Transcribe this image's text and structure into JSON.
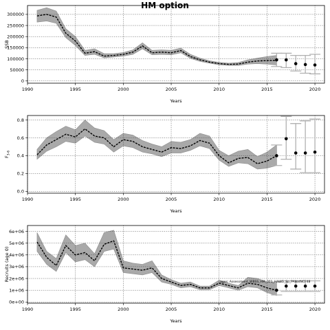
{
  "title": "HM option",
  "chart_data": [
    {
      "type": "line",
      "xlabel": "Years",
      "ylabel": "SSB",
      "xlim": [
        1990,
        2021
      ],
      "ylim": [
        -10000,
        340000
      ],
      "x_ticks": [
        1990,
        1995,
        2000,
        2005,
        2010,
        2015,
        2020
      ],
      "y_ticks": [
        0,
        50000,
        100000,
        150000,
        200000,
        250000,
        300000
      ],
      "grid": true,
      "x": [
        1991,
        1992,
        1993,
        1994,
        1995,
        1996,
        1997,
        1998,
        1999,
        2000,
        2001,
        2002,
        2003,
        2004,
        2005,
        2006,
        2007,
        2008,
        2009,
        2010,
        2011,
        2012,
        2013,
        2014,
        2015,
        2016
      ],
      "estimate": [
        293000,
        300000,
        288000,
        215000,
        180000,
        125000,
        132000,
        112000,
        115000,
        120000,
        130000,
        158000,
        127000,
        130000,
        127000,
        137000,
        110000,
        95000,
        85000,
        78000,
        75000,
        76000,
        85000,
        90000,
        92000,
        93000
      ],
      "lower": [
        265000,
        270000,
        260000,
        195000,
        160000,
        115000,
        120000,
        104000,
        108000,
        112000,
        120000,
        145000,
        118000,
        120000,
        118000,
        127000,
        102000,
        88000,
        80000,
        73000,
        70000,
        70000,
        76000,
        78000,
        76000,
        72000
      ],
      "upper": [
        318000,
        330000,
        315000,
        235000,
        200000,
        138000,
        145000,
        123000,
        123000,
        128000,
        140000,
        172000,
        138000,
        140000,
        138000,
        148000,
        120000,
        103000,
        91000,
        84000,
        80000,
        83000,
        95000,
        103000,
        110000,
        115000
      ],
      "forecast": {
        "x": [
          2016,
          2017,
          2018,
          2019,
          2020
        ],
        "values": [
          95000,
          95000,
          78000,
          74000,
          72000
        ],
        "lower": [
          65000,
          60000,
          45000,
          35000,
          32000
        ],
        "upper": [
          125000,
          125000,
          115000,
          115000,
          120000
        ]
      }
    },
    {
      "type": "line",
      "xlabel": "Years",
      "ylabel": "F",
      "ylabel_subscript": "3-6",
      "xlim": [
        1990,
        2021
      ],
      "ylim": [
        -0.02,
        0.85
      ],
      "x_ticks": [
        1990,
        1995,
        2000,
        2005,
        2010,
        2015,
        2020
      ],
      "y_ticks": [
        0.0,
        0.2,
        0.4,
        0.6,
        0.8
      ],
      "y_tick_labels": [
        "0.0",
        "0.2",
        "0.4",
        "0.6",
        "0.8"
      ],
      "grid": true,
      "x": [
        1991,
        1992,
        1993,
        1994,
        1995,
        1996,
        1997,
        1998,
        1999,
        2000,
        2001,
        2002,
        2003,
        2004,
        2005,
        2006,
        2007,
        2008,
        2009,
        2010,
        2011,
        2012,
        2013,
        2014,
        2015,
        2016
      ],
      "estimate": [
        0.41,
        0.52,
        0.58,
        0.64,
        0.61,
        0.7,
        0.62,
        0.6,
        0.5,
        0.58,
        0.56,
        0.5,
        0.47,
        0.44,
        0.49,
        0.48,
        0.51,
        0.57,
        0.54,
        0.4,
        0.32,
        0.37,
        0.38,
        0.31,
        0.34,
        0.4
      ],
      "lower": [
        0.36,
        0.45,
        0.5,
        0.56,
        0.54,
        0.62,
        0.55,
        0.53,
        0.44,
        0.51,
        0.49,
        0.44,
        0.42,
        0.39,
        0.43,
        0.43,
        0.46,
        0.51,
        0.48,
        0.35,
        0.28,
        0.32,
        0.31,
        0.25,
        0.26,
        0.29
      ],
      "upper": [
        0.47,
        0.6,
        0.67,
        0.73,
        0.69,
        0.8,
        0.71,
        0.68,
        0.58,
        0.65,
        0.63,
        0.57,
        0.53,
        0.5,
        0.56,
        0.55,
        0.58,
        0.65,
        0.62,
        0.46,
        0.4,
        0.45,
        0.47,
        0.39,
        0.44,
        0.52
      ],
      "forecast": {
        "x": [
          2016,
          2017,
          2018,
          2019,
          2020
        ],
        "values": [
          0.4,
          0.59,
          0.43,
          0.43,
          0.44
        ],
        "lower": [
          0.29,
          0.36,
          0.25,
          0.21,
          0.21
        ],
        "upper": [
          0.52,
          0.84,
          0.76,
          0.79,
          0.81
        ]
      }
    },
    {
      "type": "line",
      "xlabel": "Years",
      "ylabel": "Recruits (age 0)",
      "xlim": [
        1990,
        2021
      ],
      "ylim": [
        -100000,
        6500000
      ],
      "x_ticks": [
        1990,
        1995,
        2000,
        2005,
        2010,
        2015,
        2020
      ],
      "y_ticks": [
        0,
        1000000,
        2000000,
        3000000,
        4000000,
        5000000,
        6000000
      ],
      "y_tick_labels": [
        "0e+00",
        "1e+06",
        "2e+06",
        "3e+06",
        "4e+06",
        "5e+06",
        "6e+06"
      ],
      "grid": true,
      "annotation": "ages: Assessment_WBSS_HM_001_HAWG_Sp_PANatNCF48",
      "x": [
        1991,
        1992,
        1993,
        1994,
        1995,
        1996,
        1997,
        1998,
        1999,
        2000,
        2001,
        2002,
        2003,
        2004,
        2005,
        2006,
        2007,
        2008,
        2009,
        2010,
        2011,
        2012,
        2013,
        2014,
        2015,
        2016
      ],
      "estimate": [
        5100000,
        3800000,
        3100000,
        4800000,
        4000000,
        4200000,
        3500000,
        4900000,
        5200000,
        2900000,
        2800000,
        2700000,
        2900000,
        2000000,
        1700000,
        1400000,
        1500000,
        1200000,
        1200000,
        1600000,
        1400000,
        1200000,
        1600000,
        1500000,
        1200000,
        1000000
      ],
      "lower": [
        4300000,
        3200000,
        2600000,
        4200000,
        3400000,
        3600000,
        3000000,
        4300000,
        4500000,
        2500000,
        2400000,
        2300000,
        2500000,
        1700000,
        1500000,
        1200000,
        1300000,
        1050000,
        1050000,
        1400000,
        1200000,
        1000000,
        1300000,
        1200000,
        800000,
        550000
      ],
      "upper": [
        5900000,
        4300000,
        3700000,
        5700000,
        4800000,
        5000000,
        4100000,
        5900000,
        6100000,
        3500000,
        3300000,
        3200000,
        3500000,
        2300000,
        1900000,
        1600000,
        1700000,
        1350000,
        1350000,
        1850000,
        1600000,
        1400000,
        2100000,
        2000000,
        1700000,
        1600000
      ],
      "forecast": {
        "x": [
          2016,
          2017,
          2018,
          2019,
          2020
        ],
        "values": [
          1000000,
          1350000,
          1350000,
          1350000,
          1350000
        ],
        "lower": [
          600000,
          900000,
          900000,
          900000,
          900000
        ],
        "upper": [
          1700000,
          1800000,
          1800000,
          1800000,
          1800000
        ]
      }
    }
  ]
}
